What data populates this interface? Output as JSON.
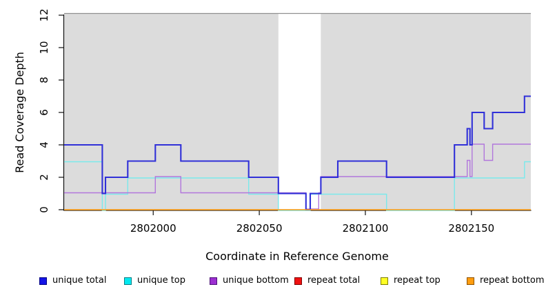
{
  "chart_data": {
    "type": "line",
    "subtype": "step-after",
    "title": "",
    "xlabel": "Coordinate in Reference Genome",
    "ylabel": "Read Coverage Depth",
    "xlim": [
      2801958,
      2802178
    ],
    "ylim": [
      0,
      12
    ],
    "x_ticks": [
      2802000,
      2802050,
      2802100,
      2802150
    ],
    "y_ticks": [
      0,
      2,
      4,
      6,
      8,
      10,
      12
    ],
    "grid": "off",
    "plot_bg_color": "#dcdcdc",
    "plot_top_border_color": "#8f8f8f",
    "gap_band": {
      "x0": 2802059,
      "x1": 2802079,
      "color": "#ffffff"
    },
    "series": [
      {
        "name": "repeat total",
        "color": "#d42222",
        "width": 1.3,
        "dy": 0,
        "points": [
          [
            2801958,
            0
          ]
        ]
      },
      {
        "name": "repeat top",
        "color": "#f0f020",
        "width": 1.3,
        "dy": 0,
        "points": [
          [
            2801958,
            0
          ]
        ]
      },
      {
        "name": "unique top",
        "color": "#7ae9eb",
        "width": 1.4,
        "dy": 1,
        "points": [
          [
            2801958,
            3
          ],
          [
            2801976,
            0
          ],
          [
            2801977.5,
            1
          ],
          [
            2801988,
            2
          ],
          [
            2802045,
            1
          ],
          [
            2802059,
            0
          ],
          [
            2802074,
            1
          ],
          [
            2802110,
            0
          ],
          [
            2802142,
            2
          ],
          [
            2802175,
            3
          ]
        ]
      },
      {
        "name": "unique bottom",
        "color": "#b176dc",
        "width": 1.4,
        "dy": -1,
        "points": [
          [
            2801958,
            1
          ],
          [
            2802001,
            2
          ],
          [
            2802013,
            1
          ],
          [
            2802072,
            0
          ],
          [
            2802078,
            1
          ],
          [
            2802079,
            2
          ],
          [
            2802148,
            3
          ],
          [
            2802149.3,
            2
          ],
          [
            2802150.3,
            4
          ],
          [
            2802156,
            3
          ],
          [
            2802160,
            4
          ]
        ]
      },
      {
        "name": "unique total",
        "color": "#3030d8",
        "width": 2.1,
        "dy": 0,
        "points": [
          [
            2801958,
            4
          ],
          [
            2801976,
            1
          ],
          [
            2801977.5,
            2
          ],
          [
            2801988,
            3
          ],
          [
            2802001,
            4
          ],
          [
            2802013,
            3
          ],
          [
            2802045,
            2
          ],
          [
            2802059,
            1
          ],
          [
            2802072,
            0
          ],
          [
            2802074,
            1
          ],
          [
            2802079,
            2
          ],
          [
            2802087,
            3
          ],
          [
            2802110,
            2
          ],
          [
            2802142,
            4
          ],
          [
            2802148,
            5
          ],
          [
            2802149.3,
            4
          ],
          [
            2802150.3,
            6
          ],
          [
            2802156,
            5
          ],
          [
            2802160,
            6
          ],
          [
            2802175,
            7
          ]
        ]
      },
      {
        "name": "repeat bottom",
        "color": "#ffa01e",
        "width": 1.6,
        "dy": 0,
        "points": [
          [
            2801958,
            0
          ]
        ]
      }
    ],
    "legend": {
      "position": "bottom",
      "items": [
        {
          "label": "unique total",
          "fill": "#1414e6",
          "border": "#000082"
        },
        {
          "label": "unique top",
          "fill": "#00e9f0",
          "border": "#077d84"
        },
        {
          "label": "unique bottom",
          "fill": "#9c2fd1",
          "border": "#4d1178"
        },
        {
          "label": "repeat total",
          "fill": "#f01111",
          "border": "#7e0000"
        },
        {
          "label": "repeat top",
          "fill": "#ffff25",
          "border": "#7c7c00"
        },
        {
          "label": "repeat bottom",
          "fill": "#ff9d0f",
          "border": "#8e5200"
        }
      ]
    }
  }
}
